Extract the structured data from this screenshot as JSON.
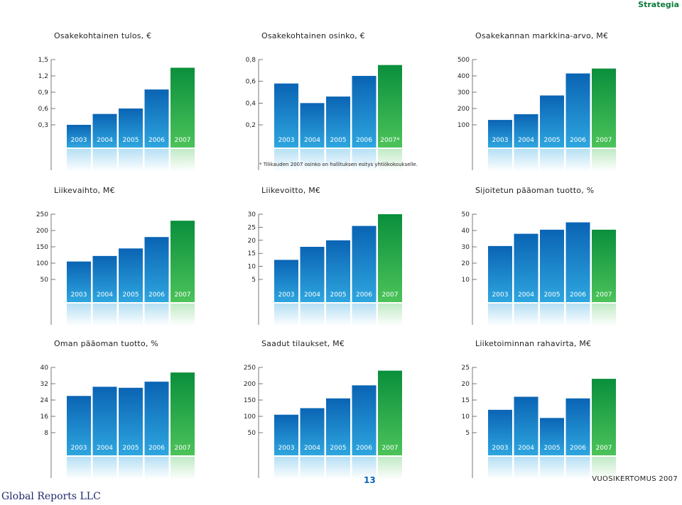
{
  "header": {
    "section": "Strategia"
  },
  "footer": {
    "page_number": "13",
    "report_title": "VUOSIKERTOMUS 2007",
    "watermark": "Global Reports LLC"
  },
  "footnote": "* Tilikauden 2007 osinko on hallituksen esitys yhtiökokoukselle.",
  "colors": {
    "blue_top": "#0a64b4",
    "blue_bottom": "#2ea6df",
    "green_top": "#0a8f3c",
    "green_bottom": "#4cc35a",
    "axis": "#231f20"
  },
  "chart_data": [
    {
      "id": "eps",
      "type": "bar",
      "title": "Osakekohtainen tulos, €",
      "categories": [
        "2003",
        "2004",
        "2005",
        "2006",
        "2007"
      ],
      "values": [
        0.3,
        0.5,
        0.6,
        0.95,
        1.35
      ],
      "ticks": [
        "0,3",
        "0,6",
        "0,9",
        "1,2",
        "1,5"
      ],
      "tick_values": [
        0.3,
        0.6,
        0.9,
        1.2,
        1.5
      ],
      "ylim": [
        0.3,
        1.5
      ]
    },
    {
      "id": "dps",
      "type": "bar",
      "title": "Osakekohtainen osinko, €",
      "categories": [
        "2003",
        "2004",
        "2005",
        "2006",
        "2007*"
      ],
      "values": [
        0.58,
        0.4,
        0.46,
        0.65,
        0.75
      ],
      "ticks": [
        "0,2",
        "0,4",
        "0,6",
        "0,8"
      ],
      "tick_values": [
        0.2,
        0.4,
        0.6,
        0.8
      ],
      "ylim": [
        0.2,
        0.8
      ]
    },
    {
      "id": "mcap",
      "type": "bar",
      "title": "Osakekannan markkina-arvo, M€",
      "categories": [
        "2003",
        "2004",
        "2005",
        "2006",
        "2007"
      ],
      "values": [
        130,
        165,
        280,
        415,
        445
      ],
      "ticks": [
        "100",
        "200",
        "300",
        "400",
        "500"
      ],
      "tick_values": [
        100,
        200,
        300,
        400,
        500
      ],
      "ylim": [
        100,
        500
      ]
    },
    {
      "id": "revenue",
      "type": "bar",
      "title": "Liikevaihto, M€",
      "categories": [
        "2003",
        "2004",
        "2005",
        "2006",
        "2007"
      ],
      "values": [
        105,
        122,
        145,
        180,
        230
      ],
      "ticks": [
        "50",
        "100",
        "150",
        "200",
        "250"
      ],
      "tick_values": [
        50,
        100,
        150,
        200,
        250
      ],
      "ylim": [
        50,
        250
      ]
    },
    {
      "id": "ebit",
      "type": "bar",
      "title": "Liikevoitto, M€",
      "categories": [
        "2003",
        "2004",
        "2005",
        "2006",
        "2007"
      ],
      "values": [
        12.5,
        17.5,
        20,
        25.5,
        30
      ],
      "ticks": [
        "5",
        "10",
        "15",
        "20",
        "25",
        "30"
      ],
      "tick_values": [
        5,
        10,
        15,
        20,
        25,
        30
      ],
      "ylim": [
        5,
        30
      ]
    },
    {
      "id": "roi",
      "type": "bar",
      "title": "Sijoitetun pääoman tuotto, %",
      "categories": [
        "2003",
        "2004",
        "2005",
        "2006",
        "2007"
      ],
      "values": [
        30.5,
        38,
        40.5,
        45,
        40.5
      ],
      "ticks": [
        "10",
        "20",
        "30",
        "40",
        "50"
      ],
      "tick_values": [
        10,
        20,
        30,
        40,
        50
      ],
      "ylim": [
        10,
        50
      ]
    },
    {
      "id": "roe",
      "type": "bar",
      "title": "Oman pääoman tuotto, %",
      "categories": [
        "2003",
        "2004",
        "2005",
        "2006",
        "2007"
      ],
      "values": [
        26,
        30.5,
        30,
        33,
        37.5
      ],
      "ticks": [
        "8",
        "16",
        "24",
        "32",
        "40"
      ],
      "tick_values": [
        8,
        16,
        24,
        32,
        40
      ],
      "ylim": [
        8,
        40
      ]
    },
    {
      "id": "orders",
      "type": "bar",
      "title": "Saadut tilaukset, M€",
      "categories": [
        "2003",
        "2004",
        "2005",
        "2006",
        "2007"
      ],
      "values": [
        105,
        125,
        155,
        195,
        240
      ],
      "ticks": [
        "50",
        "100",
        "150",
        "200",
        "250"
      ],
      "tick_values": [
        50,
        100,
        150,
        200,
        250
      ],
      "ylim": [
        50,
        250
      ]
    },
    {
      "id": "cashflow",
      "type": "bar",
      "title": "Liiketoiminnan rahavirta, M€",
      "categories": [
        "2003",
        "2004",
        "2005",
        "2006",
        "2007"
      ],
      "values": [
        12,
        16,
        9.5,
        15.5,
        21.5
      ],
      "ticks": [
        "5",
        "10",
        "15",
        "20",
        "25"
      ],
      "tick_values": [
        5,
        10,
        15,
        20,
        25
      ],
      "ylim": [
        5,
        25
      ]
    }
  ]
}
